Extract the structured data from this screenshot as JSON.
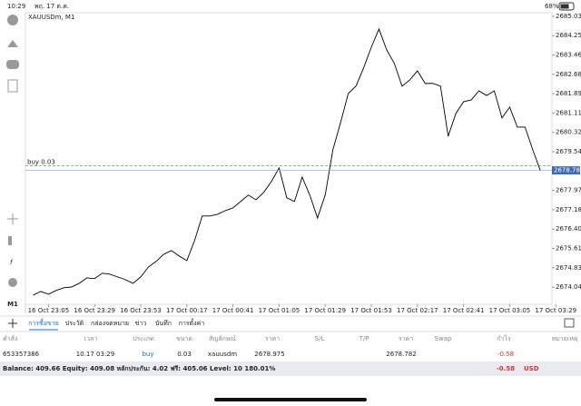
{
  "status_bar": {
    "time": "10:29",
    "date": "พฤ. 17 ต.ค.",
    "battery": "68%"
  },
  "toolbar": {
    "timeframe": "M1"
  },
  "chart_data": {
    "type": "line",
    "title": "XAUUSDm, M1",
    "x": [
      -8,
      -4,
      0,
      4,
      8,
      12,
      16,
      20,
      24,
      28,
      32,
      36,
      40,
      44,
      48,
      52,
      56,
      60,
      64,
      68,
      72,
      76,
      80,
      84,
      88,
      92,
      96,
      100,
      104,
      108,
      112,
      116,
      120,
      124,
      128,
      132,
      136,
      140,
      144,
      148,
      152,
      156,
      160,
      164,
      168,
      172,
      176,
      180,
      184,
      188,
      192,
      196,
      200,
      204,
      208,
      212,
      216,
      220,
      224,
      228,
      232,
      236,
      240,
      244,
      248,
      252,
      256
    ],
    "values": [
      2673.72,
      2673.87,
      2673.76,
      2673.91,
      2674.02,
      2674.05,
      2674.2,
      2674.42,
      2674.39,
      2674.61,
      2674.57,
      2674.46,
      2674.35,
      2674.2,
      2674.46,
      2674.86,
      2675.09,
      2675.38,
      2675.53,
      2675.31,
      2675.12,
      2675.93,
      2676.93,
      2676.93,
      2677.0,
      2677.15,
      2677.26,
      2677.52,
      2677.78,
      2677.59,
      2677.89,
      2678.33,
      2678.88,
      2677.67,
      2677.52,
      2678.51,
      2677.78,
      2676.85,
      2677.78,
      2679.62,
      2680.72,
      2681.9,
      2682.2,
      2682.94,
      2683.78,
      2684.52,
      2683.67,
      2683.12,
      2682.2,
      2682.45,
      2682.82,
      2682.31,
      2682.31,
      2682.2,
      2680.17,
      2681.09,
      2681.57,
      2681.64,
      2682.01,
      2681.82,
      2682.01,
      2680.91,
      2681.35,
      2680.54,
      2680.54,
      2679.62,
      2678.77
    ],
    "color": "#000000",
    "xlim": [
      -12,
      262
    ],
    "xticks": [
      {
        "value": 0,
        "label": "16 Oct 23:05"
      },
      {
        "value": 24,
        "label": "16 Oct 23:29"
      },
      {
        "value": 48,
        "label": "16 Oct 23:53"
      },
      {
        "value": 72,
        "label": "17 Oct 00:17"
      },
      {
        "value": 96,
        "label": "17 Oct 00:41"
      },
      {
        "value": 120,
        "label": "17 Oct 01:05"
      },
      {
        "value": 144,
        "label": "17 Oct 01:29"
      },
      {
        "value": 168,
        "label": "17 Oct 01:53"
      },
      {
        "value": 192,
        "label": "17 Oct 02:17"
      },
      {
        "value": 216,
        "label": "17 Oct 02:41"
      },
      {
        "value": 240,
        "label": "17 Oct 03:05"
      },
      {
        "value": 264,
        "label": "17 Oct 03:29"
      }
    ],
    "ylim": [
      2673.35,
      2685.18
    ],
    "yticks": [
      2685.035,
      {
        "value": 2684.25,
        "label": "2684.250"
      },
      2683.465,
      {
        "value": 2682.68,
        "label": "2682.680"
      },
      2681.895,
      {
        "value": 2681.11,
        "label": "2681.110"
      },
      2680.325,
      {
        "value": 2679.54,
        "label": "2679.540"
      },
      {
        "value": 2677.97,
        "label": "2677.970"
      },
      2677.185,
      {
        "value": 2676.4,
        "label": "2676.400"
      },
      2675.615,
      {
        "value": 2674.83,
        "label": "2674.830"
      },
      2674.045
    ],
    "current_price": 2678.782,
    "order_line": {
      "label": "buy 0.03",
      "value": 2678.975
    }
  },
  "terminal": {
    "tabs": [
      "การซื้อขาย",
      "ประวัติ",
      "กล่องจดหมาย",
      "ข่าว",
      "บันทึก",
      "การตั้งค่า"
    ],
    "columns": [
      "คำสั่ง",
      "เวลา",
      "ประเภท",
      "ขนาด",
      "สัญลักษณ์",
      "ราคา",
      "S/L",
      "T/P",
      "ราคา",
      "Swap",
      "กำไร",
      "หมายเหตุ"
    ],
    "row": {
      "order": "653357386",
      "time": "10.17 03:29",
      "type": "buy",
      "size": "0.03",
      "symbol": "xauusdm",
      "open_price": "2678.975",
      "price": "2678.782",
      "profit": "-0.58"
    },
    "balance": "Balance: 409.66 Equity: 409.08 หลักประกัน: 4.02 ฟรี: 405.06 Level: 10 180.01%",
    "total_profit": "-0.58",
    "currency": "USD"
  }
}
